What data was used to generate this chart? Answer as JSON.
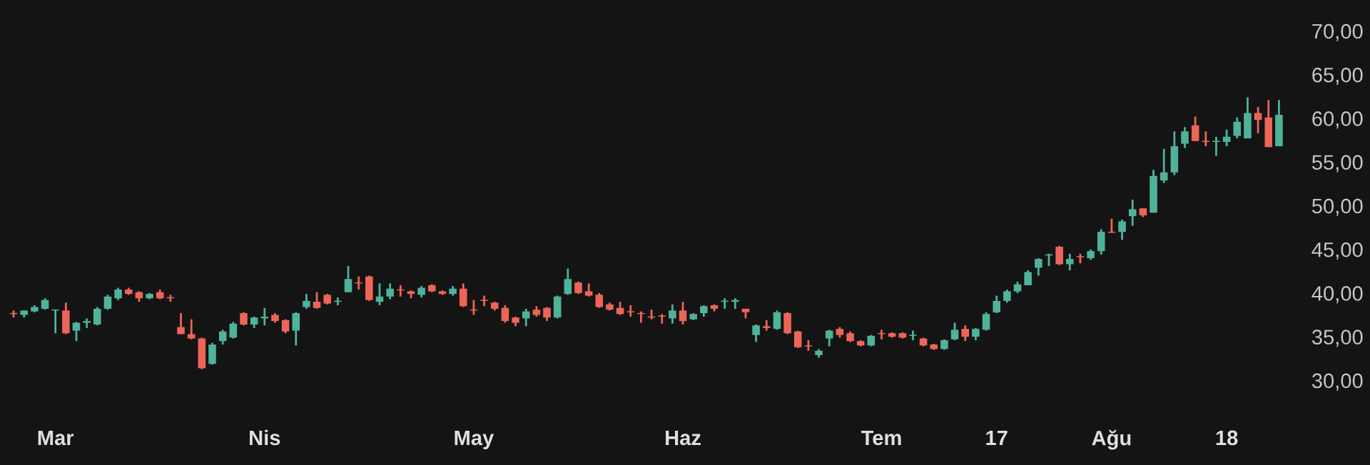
{
  "chart_data": {
    "type": "candlestick",
    "categories": [
      null,
      null,
      null,
      null,
      "Mar",
      null,
      null,
      null,
      null,
      null,
      null,
      null,
      null,
      null,
      null,
      null,
      null,
      null,
      null,
      null,
      null,
      null,
      null,
      null,
      "Nis",
      null,
      null,
      null,
      null,
      null,
      null,
      null,
      null,
      null,
      null,
      null,
      null,
      null,
      null,
      null,
      null,
      null,
      null,
      null,
      "May",
      null,
      null,
      null,
      null,
      null,
      null,
      null,
      null,
      null,
      null,
      null,
      null,
      null,
      null,
      null,
      null,
      null,
      null,
      null,
      "Haz",
      null,
      null,
      null,
      null,
      null,
      null,
      null,
      null,
      null,
      null,
      null,
      null,
      null,
      null,
      null,
      null,
      null,
      null,
      "Tem",
      null,
      null,
      null,
      null,
      null,
      null,
      null,
      null,
      null,
      null,
      "17",
      null,
      null,
      null,
      null,
      null,
      null,
      null,
      null,
      null,
      null,
      "Ağu",
      null,
      null,
      null,
      null,
      null,
      null,
      null,
      null,
      null,
      null,
      "18",
      null,
      null,
      null,
      null,
      null
    ],
    "ohlc": [
      [
        37.7,
        38.0,
        37.2,
        37.6
      ],
      [
        37.5,
        38.0,
        37.2,
        38.0
      ],
      [
        37.9,
        38.6,
        37.8,
        38.4
      ],
      [
        38.2,
        39.4,
        38.1,
        39.2
      ],
      [
        38.0,
        38.1,
        35.4,
        38.1
      ],
      [
        38.0,
        38.9,
        35.3,
        35.4
      ],
      [
        35.7,
        36.7,
        34.5,
        36.6
      ],
      [
        36.6,
        37.1,
        36.0,
        36.8
      ],
      [
        36.4,
        38.4,
        36.3,
        38.2
      ],
      [
        38.2,
        39.8,
        38.1,
        39.6
      ],
      [
        39.4,
        40.6,
        39.2,
        40.4
      ],
      [
        40.4,
        40.6,
        39.8,
        39.9
      ],
      [
        40.1,
        40.2,
        39.0,
        39.4
      ],
      [
        39.4,
        40.0,
        39.3,
        39.9
      ],
      [
        40.1,
        40.4,
        39.3,
        39.4
      ],
      [
        39.5,
        39.8,
        39.0,
        39.4
      ],
      [
        36.1,
        37.7,
        35.3,
        35.3
      ],
      [
        35.3,
        37.0,
        34.7,
        34.8
      ],
      [
        34.8,
        34.9,
        31.3,
        31.4
      ],
      [
        31.9,
        34.3,
        31.8,
        34.1
      ],
      [
        34.5,
        35.8,
        34.1,
        35.6
      ],
      [
        34.9,
        36.7,
        34.8,
        36.5
      ],
      [
        37.7,
        37.8,
        36.3,
        36.4
      ],
      [
        36.4,
        37.3,
        36.0,
        37.2
      ],
      [
        37.1,
        38.3,
        36.3,
        37.3
      ],
      [
        37.5,
        37.7,
        36.6,
        36.8
      ],
      [
        36.9,
        37.0,
        35.4,
        35.6
      ],
      [
        35.7,
        37.8,
        34.0,
        37.7
      ],
      [
        38.4,
        39.9,
        38.2,
        39.1
      ],
      [
        39.0,
        40.1,
        38.2,
        38.3
      ],
      [
        39.8,
        39.9,
        38.7,
        38.8
      ],
      [
        39.0,
        39.5,
        38.6,
        39.1
      ],
      [
        40.1,
        43.1,
        40.1,
        41.6
      ],
      [
        41.2,
        41.9,
        40.4,
        41.1
      ],
      [
        41.9,
        42.0,
        39.1,
        39.2
      ],
      [
        39.0,
        41.1,
        38.6,
        39.6
      ],
      [
        39.6,
        41.1,
        39.3,
        40.5
      ],
      [
        40.4,
        40.9,
        39.6,
        40.3
      ],
      [
        40.2,
        40.3,
        39.4,
        39.9
      ],
      [
        39.8,
        40.8,
        39.5,
        40.6
      ],
      [
        40.9,
        41.0,
        40.1,
        40.2
      ],
      [
        40.2,
        40.3,
        39.8,
        39.9
      ],
      [
        39.9,
        40.8,
        39.7,
        40.5
      ],
      [
        40.5,
        41.1,
        38.4,
        38.5
      ],
      [
        38.1,
        39.2,
        37.5,
        38.0
      ],
      [
        39.2,
        39.7,
        38.5,
        39.1
      ],
      [
        38.9,
        39.0,
        38.0,
        38.2
      ],
      [
        38.3,
        38.6,
        36.6,
        36.8
      ],
      [
        37.2,
        37.3,
        36.2,
        36.6
      ],
      [
        37.1,
        38.2,
        36.2,
        37.9
      ],
      [
        38.1,
        38.5,
        37.3,
        37.5
      ],
      [
        38.3,
        38.4,
        36.8,
        37.2
      ],
      [
        37.2,
        39.7,
        37.1,
        39.6
      ],
      [
        39.9,
        42.8,
        39.8,
        41.6
      ],
      [
        41.2,
        41.3,
        39.9,
        40.0
      ],
      [
        40.2,
        41.1,
        39.6,
        39.7
      ],
      [
        39.8,
        40.0,
        38.3,
        38.4
      ],
      [
        38.7,
        38.9,
        38.0,
        38.1
      ],
      [
        38.3,
        39.0,
        37.5,
        37.6
      ],
      [
        37.9,
        38.6,
        37.3,
        37.8
      ],
      [
        37.7,
        37.9,
        36.6,
        37.6
      ],
      [
        37.25,
        38.1,
        37.0,
        37.2
      ],
      [
        37.4,
        37.6,
        36.5,
        37.3
      ],
      [
        37.1,
        38.7,
        36.5,
        38.0
      ],
      [
        38.0,
        39.0,
        36.4,
        36.8
      ],
      [
        37.0,
        37.7,
        36.9,
        37.6
      ],
      [
        37.7,
        38.6,
        37.3,
        38.5
      ],
      [
        38.6,
        38.7,
        37.9,
        38.2
      ],
      [
        39.0,
        39.4,
        38.2,
        39.1
      ],
      [
        39.0,
        39.4,
        38.2,
        39.2
      ],
      [
        38.2,
        38.2,
        37.1,
        37.8
      ],
      [
        35.2,
        36.4,
        34.4,
        36.3
      ],
      [
        36.2,
        36.9,
        35.7,
        36.0
      ],
      [
        35.9,
        38.0,
        35.8,
        37.8
      ],
      [
        37.7,
        37.8,
        35.3,
        35.4
      ],
      [
        35.6,
        35.7,
        33.7,
        33.8
      ],
      [
        34.0,
        34.6,
        33.4,
        33.9
      ],
      [
        32.9,
        33.6,
        32.6,
        33.4
      ],
      [
        34.8,
        35.8,
        33.9,
        35.7
      ],
      [
        35.9,
        36.1,
        34.9,
        35.2
      ],
      [
        35.4,
        35.6,
        34.4,
        34.5
      ],
      [
        34.5,
        34.6,
        33.9,
        34.0
      ],
      [
        34.0,
        35.2,
        33.9,
        35.1
      ],
      [
        35.4,
        35.8,
        34.7,
        35.3
      ],
      [
        35.4,
        35.5,
        34.9,
        35.0
      ],
      [
        35.4,
        35.5,
        34.8,
        34.9
      ],
      [
        35.1,
        35.7,
        34.6,
        35.2
      ],
      [
        34.8,
        34.9,
        33.9,
        34.0
      ],
      [
        34.1,
        34.2,
        33.5,
        33.6
      ],
      [
        33.6,
        34.7,
        33.5,
        34.6
      ],
      [
        34.7,
        36.6,
        34.6,
        35.8
      ],
      [
        35.9,
        36.3,
        34.5,
        35.0
      ],
      [
        35.0,
        36.0,
        34.6,
        35.9
      ],
      [
        35.8,
        37.8,
        35.7,
        37.6
      ],
      [
        37.8,
        39.7,
        37.7,
        39.1
      ],
      [
        39.1,
        40.4,
        38.9,
        40.2
      ],
      [
        40.2,
        41.3,
        40.0,
        41.0
      ],
      [
        40.9,
        42.6,
        40.9,
        42.4
      ],
      [
        42.9,
        44.0,
        42.0,
        43.9
      ],
      [
        44.3,
        44.5,
        43.1,
        44.4
      ],
      [
        45.3,
        45.4,
        43.2,
        43.3
      ],
      [
        43.3,
        44.5,
        42.6,
        43.9
      ],
      [
        44.2,
        44.5,
        43.4,
        44.1
      ],
      [
        44.0,
        45.0,
        43.8,
        44.8
      ],
      [
        44.8,
        47.3,
        44.4,
        47.0
      ],
      [
        47.0,
        48.5,
        46.9,
        46.9
      ],
      [
        47.0,
        48.4,
        46.1,
        48.2
      ],
      [
        48.8,
        50.7,
        47.7,
        49.6
      ],
      [
        49.7,
        49.7,
        48.7,
        48.9
      ],
      [
        49.2,
        54.1,
        49.2,
        53.4
      ],
      [
        52.9,
        56.5,
        52.6,
        53.8
      ],
      [
        53.8,
        58.5,
        53.5,
        56.8
      ],
      [
        57.1,
        59.0,
        56.6,
        58.5
      ],
      [
        59.2,
        60.2,
        57.4,
        57.4
      ],
      [
        57.4,
        58.5,
        56.8,
        57.3
      ],
      [
        57.3,
        57.9,
        55.7,
        57.4
      ],
      [
        57.3,
        58.7,
        56.8,
        57.9
      ],
      [
        58.0,
        60.1,
        57.7,
        59.6
      ],
      [
        57.7,
        62.4,
        57.7,
        60.6
      ],
      [
        60.6,
        61.3,
        58.3,
        59.8
      ],
      [
        60.1,
        62.1,
        56.7,
        56.7
      ],
      [
        56.8,
        62.1,
        56.8,
        60.4
      ]
    ],
    "colors": [
      "#ee6558",
      "#4fb39c",
      "#4fb39c",
      "#4fb39c",
      "#4fb39c",
      "#ee6558",
      "#4fb39c",
      "#4fb39c",
      "#4fb39c",
      "#4fb39c",
      "#4fb39c",
      "#ee6558",
      "#ee6558",
      "#4fb39c",
      "#ee6558",
      "#ee6558",
      "#ee6558",
      "#ee6558",
      "#ee6558",
      "#4fb39c",
      "#4fb39c",
      "#4fb39c",
      "#ee6558",
      "#4fb39c",
      "#4fb39c",
      "#ee6558",
      "#ee6558",
      "#4fb39c",
      "#4fb39c",
      "#ee6558",
      "#ee6558",
      "#4fb39c",
      "#4fb39c",
      "#ee6558",
      "#ee6558",
      "#4fb39c",
      "#4fb39c",
      "#ee6558",
      "#ee6558",
      "#4fb39c",
      "#ee6558",
      "#ee6558",
      "#4fb39c",
      "#ee6558",
      "#ee6558",
      "#ee6558",
      "#ee6558",
      "#ee6558",
      "#ee6558",
      "#4fb39c",
      "#ee6558",
      "#ee6558",
      "#4fb39c",
      "#4fb39c",
      "#ee6558",
      "#ee6558",
      "#ee6558",
      "#ee6558",
      "#ee6558",
      "#ee6558",
      "#ee6558",
      "#ee6558",
      "#ee6558",
      "#4fb39c",
      "#ee6558",
      "#4fb39c",
      "#4fb39c",
      "#ee6558",
      "#4fb39c",
      "#4fb39c",
      "#ee6558",
      "#4fb39c",
      "#ee6558",
      "#4fb39c",
      "#ee6558",
      "#ee6558",
      "#ee6558",
      "#4fb39c",
      "#4fb39c",
      "#ee6558",
      "#ee6558",
      "#ee6558",
      "#4fb39c",
      "#ee6558",
      "#ee6558",
      "#ee6558",
      "#4fb39c",
      "#ee6558",
      "#ee6558",
      "#4fb39c",
      "#4fb39c",
      "#ee6558",
      "#4fb39c",
      "#4fb39c",
      "#4fb39c",
      "#4fb39c",
      "#4fb39c",
      "#4fb39c",
      "#4fb39c",
      "#4fb39c",
      "#ee6558",
      "#4fb39c",
      "#ee6558",
      "#4fb39c",
      "#4fb39c",
      "#ee6558",
      "#4fb39c",
      "#4fb39c",
      "#ee6558",
      "#4fb39c",
      "#4fb39c",
      "#4fb39c",
      "#4fb39c",
      "#ee6558",
      "#ee6558",
      "#4fb39c",
      "#4fb39c",
      "#4fb39c",
      "#4fb39c",
      "#ee6558",
      "#ee6558",
      "#4fb39c"
    ],
    "ylim": [
      30,
      70
    ],
    "yticks": [
      {
        "value": 30,
        "label": "30,00"
      },
      {
        "value": 35,
        "label": "35,00"
      },
      {
        "value": 40,
        "label": "40,00"
      },
      {
        "value": 45,
        "label": "45,00"
      },
      {
        "value": 50,
        "label": "50,00"
      },
      {
        "value": 55,
        "label": "55,00"
      },
      {
        "value": 60,
        "label": "60,00"
      },
      {
        "value": 65,
        "label": "65,00"
      },
      {
        "value": 70,
        "label": "70,00"
      }
    ],
    "grid": false
  }
}
